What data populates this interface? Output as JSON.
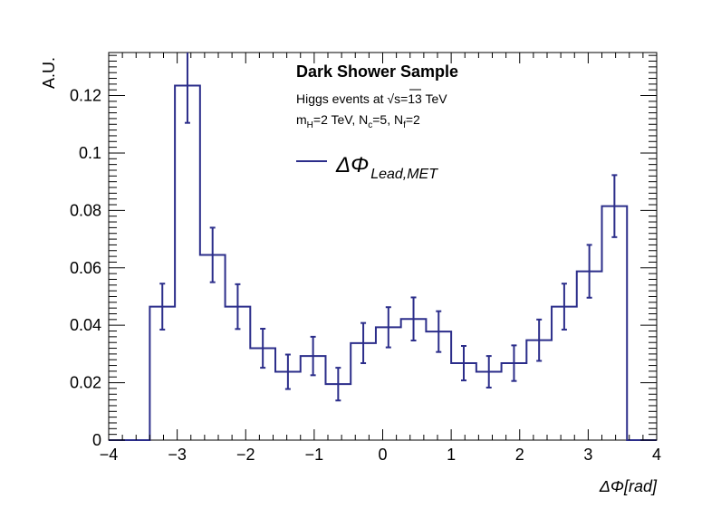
{
  "chart_data": {
    "type": "histogram",
    "xlabel": "ΔΦ[rad]",
    "ylabel": "A.U.",
    "xlim": [
      -4,
      4
    ],
    "ylim": [
      0,
      0.135
    ],
    "x_ticks": [
      "−4",
      "−3",
      "−2",
      "−1",
      "0",
      "1",
      "2",
      "3",
      "4"
    ],
    "y_ticks": [
      "0",
      "0.02",
      "0.04",
      "0.06",
      "0.08",
      "0.1",
      "0.12"
    ],
    "grid": false,
    "legend": {
      "title": "Dark Shower Sample",
      "line1_prefix": "Higgs events at ",
      "line1_root": "√s",
      "line1_suffix": "=13 TeV",
      "line2": {
        "m": "m",
        "m_sub": "H",
        "after_m": "=2 TeV, N",
        "nc_sub": "c",
        "after_nc": "=5, N",
        "nf_sub": "f",
        "after_nf": "=2"
      },
      "entry_main": "ΔΦ",
      "entry_sub": "Lead,MET",
      "placement": "top-center"
    },
    "series": [
      {
        "name": "ΔΦ Lead,MET",
        "color": "#2b2d8a",
        "bin_edges": [
          -3.4,
          -3.0333,
          -2.6667,
          -2.3,
          -1.9333,
          -1.5667,
          -1.2,
          -0.8333,
          -0.4667,
          -0.1,
          0.2667,
          0.6333,
          1.0,
          1.3667,
          1.7333,
          2.1,
          2.4667,
          2.8333,
          3.2,
          3.5667
        ],
        "values": [
          0.0465,
          0.1235,
          0.0645,
          0.0465,
          0.032,
          0.0238,
          0.0293,
          0.0195,
          0.0338,
          0.0393,
          0.0422,
          0.0378,
          0.0268,
          0.0238,
          0.0268,
          0.0348,
          0.0465,
          0.0588,
          0.0815
        ],
        "errors": [
          0.008,
          0.013,
          0.0095,
          0.0078,
          0.0068,
          0.006,
          0.0067,
          0.0057,
          0.007,
          0.007,
          0.0075,
          0.0071,
          0.006,
          0.0055,
          0.0062,
          0.0072,
          0.008,
          0.0092,
          0.0108
        ]
      }
    ]
  }
}
